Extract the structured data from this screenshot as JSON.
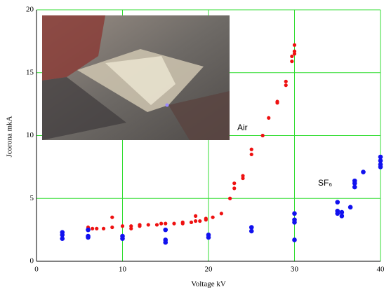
{
  "chart_data": {
    "type": "scatter",
    "x_label": "Voltage kV",
    "y_label": "Jcorona mkA",
    "xlim": [
      0,
      40
    ],
    "xticks": [
      0,
      10,
      20,
      30,
      40
    ],
    "ylim": [
      0,
      20
    ],
    "yticks": [
      0,
      5,
      10,
      15,
      20
    ],
    "grid": true,
    "grid_color": "#33dd33",
    "series": [
      {
        "name": "Air",
        "color": "#ee1111",
        "x": [
          6,
          6.5,
          7,
          7.8,
          8.8,
          8.8,
          10,
          11,
          11,
          12,
          12,
          13,
          14,
          14.5,
          15,
          16,
          17,
          17,
          18,
          18.5,
          18.5,
          19,
          19.7,
          19.7,
          20.5,
          21.5,
          22.5,
          23,
          23,
          24,
          24,
          25,
          25,
          26.3,
          27,
          28,
          28,
          29,
          29,
          29.7,
          29.7,
          30,
          30,
          30
        ],
        "values": [
          2.7,
          2.6,
          2.6,
          2.6,
          2.7,
          3.5,
          2.8,
          2.8,
          2.6,
          2.9,
          2.8,
          2.9,
          2.9,
          3.0,
          3.0,
          3.0,
          3.1,
          3.0,
          3.1,
          3.2,
          3.6,
          3.2,
          3.3,
          3.4,
          3.5,
          3.8,
          5.0,
          5.8,
          6.2,
          6.6,
          6.8,
          8.5,
          8.9,
          10.0,
          11.4,
          12.6,
          12.7,
          14.0,
          14.3,
          15.9,
          16.3,
          16.5,
          16.7,
          17.2
        ]
      },
      {
        "name": "SF₆",
        "color": "#1111ee",
        "x": [
          3,
          3,
          3,
          6,
          6,
          6,
          10,
          10,
          15,
          15,
          15,
          20,
          20,
          25,
          25,
          30,
          30,
          30,
          30,
          35,
          35,
          35,
          35.5,
          35.5,
          36.5,
          37,
          37,
          37,
          38,
          40,
          40,
          40,
          40
        ],
        "values": [
          2.3,
          2.1,
          1.8,
          2.5,
          2.0,
          1.9,
          2.0,
          1.8,
          2.5,
          1.7,
          1.5,
          2.1,
          1.9,
          2.7,
          2.4,
          3.8,
          3.3,
          3.1,
          1.7,
          4.7,
          4.0,
          3.8,
          3.6,
          3.9,
          4.3,
          6.4,
          6.2,
          5.9,
          7.1,
          8.3,
          8.0,
          7.7,
          7.5
        ]
      }
    ]
  }
}
